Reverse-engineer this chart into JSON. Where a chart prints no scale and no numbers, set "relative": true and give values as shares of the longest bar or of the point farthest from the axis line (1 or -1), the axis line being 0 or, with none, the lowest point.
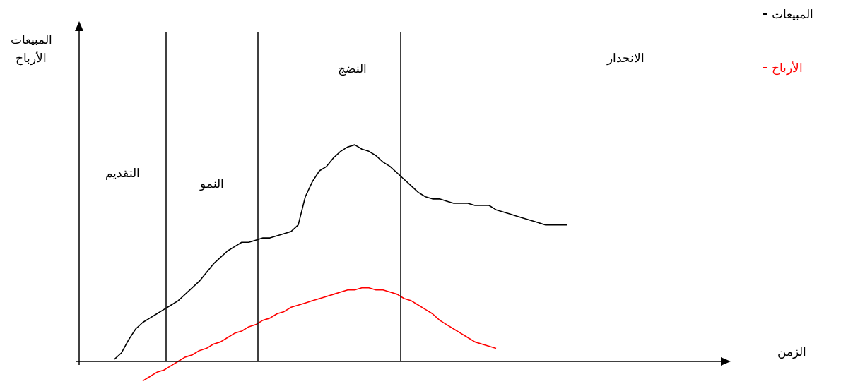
{
  "chart_data": {
    "type": "line",
    "relative": true,
    "xlabel": "الزمن",
    "legend": "top right",
    "categories": [
      null,
      null,
      null,
      null,
      null,
      null,
      null,
      null,
      null,
      null,
      null,
      null,
      null,
      null,
      null,
      null,
      null,
      null,
      null,
      null,
      null,
      null,
      null,
      null,
      null,
      null,
      null,
      null,
      null,
      null,
      null,
      null,
      null,
      null,
      null,
      null,
      null,
      null,
      null,
      null,
      null,
      null,
      null,
      null,
      null,
      null,
      null,
      null,
      null,
      null,
      null,
      null,
      null,
      null,
      null,
      null,
      null,
      null,
      null,
      null,
      null,
      null,
      null,
      null,
      null,
      null,
      null,
      null,
      null,
      null,
      null,
      null,
      null,
      null,
      null,
      null,
      null,
      null,
      null,
      null,
      null,
      null,
      null,
      null,
      null,
      null,
      null,
      null,
      null,
      null,
      null,
      null,
      null
    ],
    "series": [
      {
        "name": "المبيعات",
        "color": "#000000",
        "values": [
          null,
          null,
          null,
          null,
          null,
          0.01,
          0.04,
          0.1,
          0.15,
          0.18,
          0.2,
          0.22,
          0.24,
          0.26,
          0.28,
          0.31,
          0.34,
          0.37,
          0.41,
          0.45,
          0.48,
          0.51,
          0.53,
          0.55,
          0.55,
          0.56,
          0.57,
          0.57,
          0.58,
          0.59,
          0.6,
          0.63,
          0.76,
          0.83,
          0.88,
          0.9,
          0.94,
          0.97,
          0.99,
          1.0,
          0.98,
          0.97,
          0.95,
          0.92,
          0.9,
          0.87,
          0.84,
          0.81,
          0.78,
          0.76,
          0.75,
          0.75,
          0.74,
          0.73,
          0.73,
          0.73,
          0.72,
          0.72,
          0.72,
          0.7,
          0.69,
          0.68,
          0.67,
          0.66,
          0.65,
          0.64,
          0.63,
          0.63,
          0.63,
          0.63,
          null,
          null,
          null,
          null,
          null,
          null,
          null,
          null,
          null,
          null,
          null,
          null,
          null,
          null,
          null,
          null,
          null,
          null,
          null,
          null,
          null,
          null,
          null
        ]
      },
      {
        "name": "الأرباح",
        "color": "#ff0000",
        "values": [
          null,
          null,
          null,
          null,
          null,
          null,
          null,
          null,
          null,
          -0.09,
          -0.07,
          -0.05,
          -0.04,
          -0.02,
          0,
          0.02,
          0.03,
          0.05,
          0.06,
          0.08,
          0.09,
          0.11,
          0.13,
          0.14,
          0.16,
          0.17,
          0.19,
          0.2,
          0.22,
          0.23,
          0.25,
          0.26,
          0.27,
          0.28,
          0.29,
          0.3,
          0.31,
          0.32,
          0.33,
          0.33,
          0.34,
          0.34,
          0.33,
          0.33,
          0.32,
          0.31,
          0.29,
          0.28,
          0.26,
          0.24,
          0.22,
          0.19,
          0.17,
          0.15,
          0.13,
          0.11,
          0.09,
          0.08,
          0.07,
          0.06,
          null,
          null,
          null,
          null,
          null,
          null,
          null,
          null,
          null,
          null,
          null,
          null,
          null,
          null,
          null,
          null,
          null,
          null,
          null,
          null,
          null,
          null,
          null,
          null,
          null,
          null,
          null,
          null,
          null,
          null,
          null,
          null,
          null
        ]
      }
    ],
    "annotations": [
      "التقديم",
      "النمو",
      "النضج",
      "الانحدار",
      "المبيعات\nالأرباح"
    ]
  }
}
